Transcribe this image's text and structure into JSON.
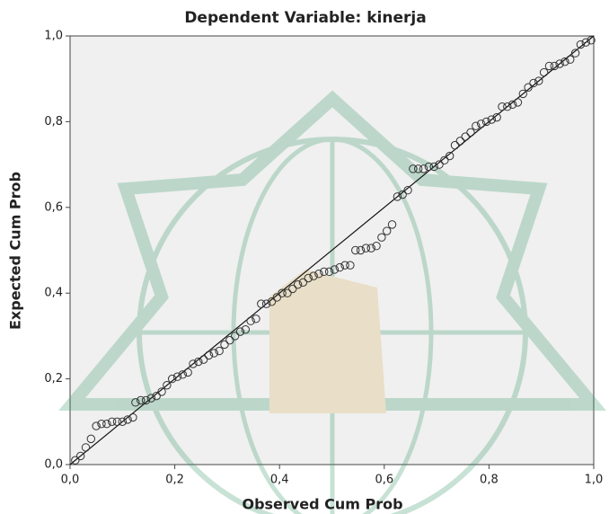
{
  "chart_data": {
    "type": "scatter",
    "title": "Dependent Variable: kinerja",
    "x_label": "Observed Cum Prob",
    "y_label": "Expected Cum Prob",
    "color": "#333333",
    "x": [
      0.01,
      0.02,
      0.03,
      0.04,
      0.05,
      0.06,
      0.07,
      0.08,
      0.09,
      0.1,
      0.11,
      0.12,
      0.125,
      0.135,
      0.145,
      0.155,
      0.165,
      0.175,
      0.185,
      0.195,
      0.205,
      0.215,
      0.225,
      0.235,
      0.245,
      0.255,
      0.265,
      0.275,
      0.285,
      0.295,
      0.305,
      0.315,
      0.325,
      0.335,
      0.345,
      0.355,
      0.365,
      0.375,
      0.385,
      0.395,
      0.405,
      0.415,
      0.425,
      0.435,
      0.445,
      0.455,
      0.465,
      0.475,
      0.485,
      0.495,
      0.505,
      0.515,
      0.525,
      0.535,
      0.545,
      0.555,
      0.565,
      0.575,
      0.585,
      0.595,
      0.605,
      0.615,
      0.625,
      0.635,
      0.645,
      0.655,
      0.665,
      0.675,
      0.685,
      0.695,
      0.705,
      0.715,
      0.725,
      0.735,
      0.745,
      0.755,
      0.765,
      0.775,
      0.785,
      0.795,
      0.805,
      0.815,
      0.825,
      0.835,
      0.845,
      0.855,
      0.865,
      0.875,
      0.885,
      0.895,
      0.905,
      0.915,
      0.925,
      0.935,
      0.945,
      0.955,
      0.965,
      0.975,
      0.985,
      0.995
    ],
    "values": [
      0.01,
      0.02,
      0.04,
      0.06,
      0.09,
      0.095,
      0.095,
      0.1,
      0.1,
      0.1,
      0.105,
      0.11,
      0.145,
      0.15,
      0.15,
      0.155,
      0.16,
      0.17,
      0.185,
      0.2,
      0.205,
      0.21,
      0.215,
      0.235,
      0.24,
      0.245,
      0.255,
      0.26,
      0.265,
      0.28,
      0.29,
      0.3,
      0.31,
      0.315,
      0.335,
      0.34,
      0.375,
      0.375,
      0.38,
      0.39,
      0.4,
      0.4,
      0.41,
      0.42,
      0.425,
      0.435,
      0.44,
      0.445,
      0.45,
      0.45,
      0.455,
      0.46,
      0.465,
      0.465,
      0.5,
      0.5,
      0.505,
      0.505,
      0.51,
      0.53,
      0.545,
      0.56,
      0.625,
      0.63,
      0.64,
      0.69,
      0.69,
      0.69,
      0.695,
      0.695,
      0.7,
      0.71,
      0.72,
      0.745,
      0.755,
      0.765,
      0.775,
      0.79,
      0.795,
      0.8,
      0.805,
      0.81,
      0.835,
      0.835,
      0.84,
      0.845,
      0.865,
      0.88,
      0.89,
      0.895,
      0.915,
      0.93,
      0.93,
      0.935,
      0.94,
      0.945,
      0.96,
      0.98,
      0.985,
      0.99
    ],
    "xlim": [
      0,
      1
    ],
    "ylim": [
      0,
      1
    ],
    "xticks": [
      {
        "value": 0,
        "label": "0,0"
      },
      {
        "value": 0.2,
        "label": "0,2"
      },
      {
        "value": 0.4,
        "label": "0,4"
      },
      {
        "value": 0.6,
        "label": "0,6"
      },
      {
        "value": 0.8,
        "label": "0,8"
      },
      {
        "value": 1,
        "label": "1,0"
      }
    ],
    "yticks": [
      {
        "value": 0,
        "label": "0,0"
      },
      {
        "value": 0.2,
        "label": "0,2"
      },
      {
        "value": 0.4,
        "label": "0,4"
      },
      {
        "value": 0.6,
        "label": "0,6"
      },
      {
        "value": 0.8,
        "label": "0,8"
      },
      {
        "value": 1,
        "label": "1,0"
      }
    ],
    "grid": false
  }
}
